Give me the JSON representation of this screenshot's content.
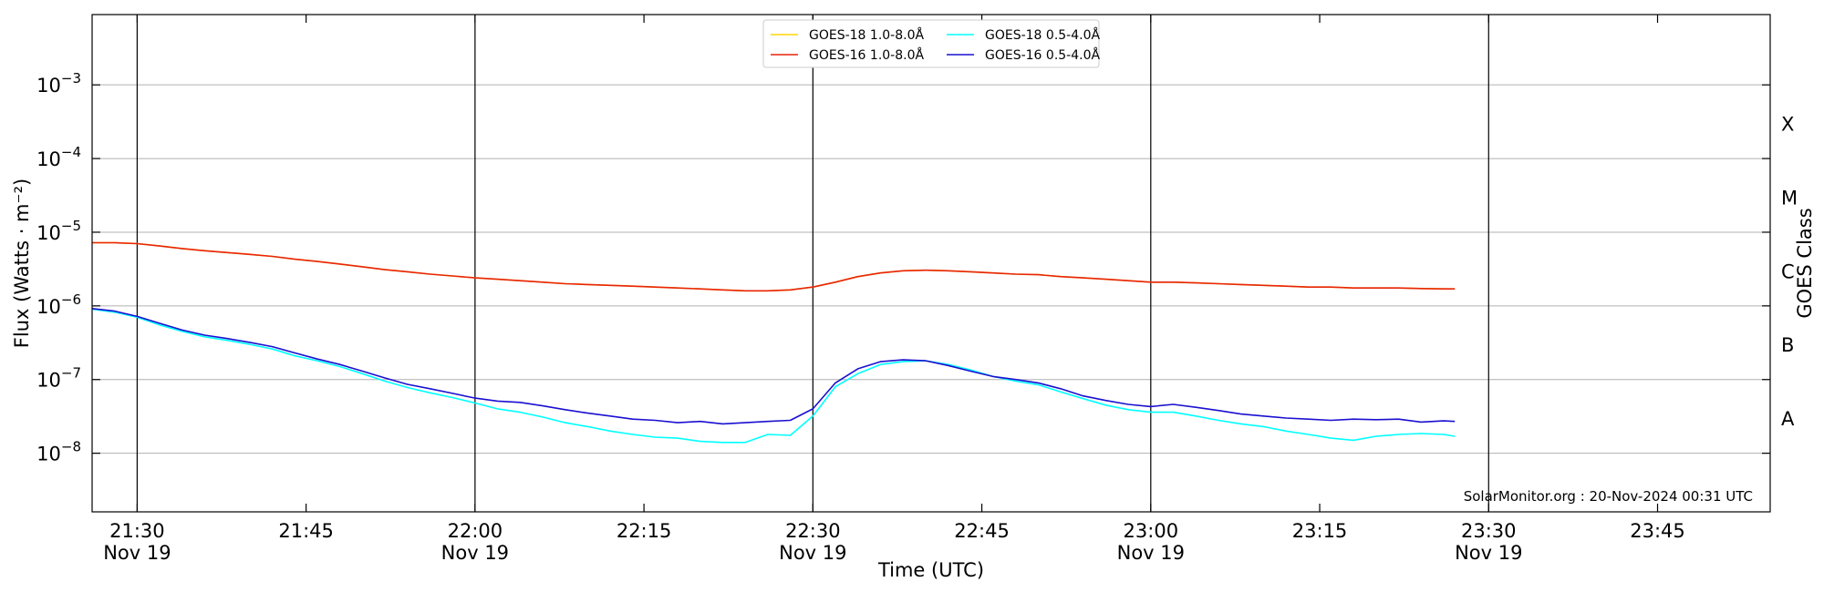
{
  "chart_data": {
    "type": "line",
    "title": "",
    "xlabel": "Time (UTC)",
    "ylabel": "Flux (Watts · m⁻²)",
    "y2label": "GOES Class",
    "yscale": "log",
    "ylim": [
      1.6e-09,
      0.009
    ],
    "xlim": [
      "21:26",
      "23:55"
    ],
    "grid": "horizontal at decades; vertical lines at each half hour",
    "legend_position": "top-center",
    "y_ticks": [
      {
        "label_base": "10",
        "label_exp": "−8",
        "value": 1e-08
      },
      {
        "label_base": "10",
        "label_exp": "−7",
        "value": 1e-07
      },
      {
        "label_base": "10",
        "label_exp": "−6",
        "value": 1e-06
      },
      {
        "label_base": "10",
        "label_exp": "−5",
        "value": 1e-05
      },
      {
        "label_base": "10",
        "label_exp": "−4",
        "value": 0.0001
      },
      {
        "label_base": "10",
        "label_exp": "−3",
        "value": 0.001
      }
    ],
    "x_ticks": [
      {
        "time": "21:30",
        "label": "21:30",
        "sublabel": "Nov 19"
      },
      {
        "time": "21:45",
        "label": "21:45",
        "sublabel": ""
      },
      {
        "time": "22:00",
        "label": "22:00",
        "sublabel": "Nov 19"
      },
      {
        "time": "22:15",
        "label": "22:15",
        "sublabel": ""
      },
      {
        "time": "22:30",
        "label": "22:30",
        "sublabel": "Nov 19"
      },
      {
        "time": "22:45",
        "label": "22:45",
        "sublabel": ""
      },
      {
        "time": "23:00",
        "label": "23:00",
        "sublabel": "Nov 19"
      },
      {
        "time": "23:15",
        "label": "23:15",
        "sublabel": ""
      },
      {
        "time": "23:30",
        "label": "23:30",
        "sublabel": "Nov 19"
      },
      {
        "time": "23:45",
        "label": "23:45",
        "sublabel": ""
      }
    ],
    "vertical_lines": [
      "21:30",
      "22:00",
      "22:30",
      "23:00",
      "23:30"
    ],
    "class_labels": [
      {
        "label": "A",
        "value": 3e-08
      },
      {
        "label": "B",
        "value": 3e-07
      },
      {
        "label": "C",
        "value": 3e-06
      },
      {
        "label": "M",
        "value": 3e-05
      },
      {
        "label": "X",
        "value": 0.0003
      }
    ],
    "credit": "SolarMonitor.org : 20-Nov-2024 00:31 UTC",
    "x": [
      "21:26",
      "21:28",
      "21:30",
      "21:32",
      "21:34",
      "21:36",
      "21:38",
      "21:40",
      "21:42",
      "21:44",
      "21:46",
      "21:48",
      "21:50",
      "21:52",
      "21:54",
      "21:56",
      "21:58",
      "22:00",
      "22:02",
      "22:04",
      "22:06",
      "22:08",
      "22:10",
      "22:12",
      "22:14",
      "22:16",
      "22:18",
      "22:20",
      "22:22",
      "22:24",
      "22:26",
      "22:28",
      "22:30",
      "22:32",
      "22:34",
      "22:36",
      "22:38",
      "22:40",
      "22:42",
      "22:44",
      "22:46",
      "22:48",
      "22:50",
      "22:52",
      "22:54",
      "22:56",
      "22:58",
      "23:00",
      "23:02",
      "23:04",
      "23:06",
      "23:08",
      "23:10",
      "23:12",
      "23:14",
      "23:16",
      "23:18",
      "23:20",
      "23:22",
      "23:24",
      "23:26",
      "23:27"
    ],
    "series": [
      {
        "name": "GOES-18 1.0-8.0Å",
        "color": "#ffd700",
        "values": [
          7.2e-06,
          7.2e-06,
          7e-06,
          6.5e-06,
          6e-06,
          5.6e-06,
          5.3e-06,
          5e-06,
          4.7e-06,
          4.3e-06,
          4e-06,
          3.7e-06,
          3.4e-06,
          3.1e-06,
          2.9e-06,
          2.7e-06,
          2.55e-06,
          2.4e-06,
          2.3e-06,
          2.2e-06,
          2.1e-06,
          2e-06,
          1.95e-06,
          1.9e-06,
          1.85e-06,
          1.8e-06,
          1.75e-06,
          1.7e-06,
          1.65e-06,
          1.6e-06,
          1.6e-06,
          1.65e-06,
          1.8e-06,
          2.1e-06,
          2.5e-06,
          2.8e-06,
          3e-06,
          3.05e-06,
          3e-06,
          2.9e-06,
          2.8e-06,
          2.7e-06,
          2.65e-06,
          2.5e-06,
          2.4e-06,
          2.3e-06,
          2.2e-06,
          2.1e-06,
          2.1e-06,
          2.05e-06,
          2e-06,
          1.95e-06,
          1.9e-06,
          1.85e-06,
          1.8e-06,
          1.8e-06,
          1.75e-06,
          1.75e-06,
          1.75e-06,
          1.72e-06,
          1.7e-06,
          1.7e-06
        ]
      },
      {
        "name": "GOES-18 0.5-4.0Å",
        "color": "#00ffff",
        "values": [
          9e-07,
          8.2e-07,
          7e-07,
          5.5e-07,
          4.5e-07,
          3.8e-07,
          3.4e-07,
          3e-07,
          2.6e-07,
          2.1e-07,
          1.8e-07,
          1.5e-07,
          1.2e-07,
          9.5e-08,
          7.8e-08,
          6.6e-08,
          5.7e-08,
          4.8e-08,
          4e-08,
          3.6e-08,
          3.1e-08,
          2.6e-08,
          2.3e-08,
          2e-08,
          1.8e-08,
          1.65e-08,
          1.6e-08,
          1.45e-08,
          1.4e-08,
          1.4e-08,
          1.8e-08,
          1.75e-08,
          3.2e-08,
          8e-08,
          1.2e-07,
          1.6e-07,
          1.75e-07,
          1.8e-07,
          1.6e-07,
          1.35e-07,
          1.1e-07,
          9.5e-08,
          8.5e-08,
          6.8e-08,
          5.5e-08,
          4.5e-08,
          3.9e-08,
          3.6e-08,
          3.6e-08,
          3.2e-08,
          2.8e-08,
          2.5e-08,
          2.3e-08,
          2e-08,
          1.8e-08,
          1.6e-08,
          1.5e-08,
          1.7e-08,
          1.8e-08,
          1.85e-08,
          1.8e-08,
          1.7e-08
        ]
      },
      {
        "name": "GOES-16 1.0-8.0Å",
        "color": "#e8240c",
        "values": [
          7.2e-06,
          7.2e-06,
          7e-06,
          6.5e-06,
          6e-06,
          5.6e-06,
          5.3e-06,
          5e-06,
          4.7e-06,
          4.3e-06,
          4e-06,
          3.7e-06,
          3.4e-06,
          3.1e-06,
          2.9e-06,
          2.7e-06,
          2.55e-06,
          2.4e-06,
          2.3e-06,
          2.2e-06,
          2.1e-06,
          2e-06,
          1.95e-06,
          1.9e-06,
          1.85e-06,
          1.8e-06,
          1.75e-06,
          1.7e-06,
          1.65e-06,
          1.6e-06,
          1.6e-06,
          1.65e-06,
          1.8e-06,
          2.1e-06,
          2.5e-06,
          2.8e-06,
          3e-06,
          3.05e-06,
          3e-06,
          2.9e-06,
          2.8e-06,
          2.7e-06,
          2.65e-06,
          2.5e-06,
          2.4e-06,
          2.3e-06,
          2.2e-06,
          2.1e-06,
          2.1e-06,
          2.05e-06,
          2e-06,
          1.95e-06,
          1.9e-06,
          1.85e-06,
          1.8e-06,
          1.8e-06,
          1.75e-06,
          1.75e-06,
          1.75e-06,
          1.72e-06,
          1.7e-06,
          1.7e-06
        ]
      },
      {
        "name": "GOES-16 0.5-4.0Å",
        "color": "#1a10d0",
        "values": [
          9.2e-07,
          8.5e-07,
          7.2e-07,
          5.8e-07,
          4.7e-07,
          4e-07,
          3.6e-07,
          3.2e-07,
          2.8e-07,
          2.3e-07,
          1.9e-07,
          1.6e-07,
          1.3e-07,
          1.05e-07,
          8.6e-08,
          7.5e-08,
          6.5e-08,
          5.6e-08,
          5.1e-08,
          4.9e-08,
          4.4e-08,
          3.9e-08,
          3.5e-08,
          3.2e-08,
          2.9e-08,
          2.8e-08,
          2.6e-08,
          2.7e-08,
          2.5e-08,
          2.6e-08,
          2.7e-08,
          2.8e-08,
          4e-08,
          9e-08,
          1.4e-07,
          1.75e-07,
          1.85e-07,
          1.8e-07,
          1.55e-07,
          1.3e-07,
          1.1e-07,
          1e-07,
          9e-08,
          7.5e-08,
          6e-08,
          5.2e-08,
          4.6e-08,
          4.3e-08,
          4.6e-08,
          4.2e-08,
          3.8e-08,
          3.4e-08,
          3.2e-08,
          3e-08,
          2.9e-08,
          2.8e-08,
          2.9e-08,
          2.85e-08,
          2.9e-08,
          2.65e-08,
          2.75e-08,
          2.7e-08
        ]
      }
    ],
    "legend_order": [
      0,
      1,
      2,
      3
    ]
  }
}
